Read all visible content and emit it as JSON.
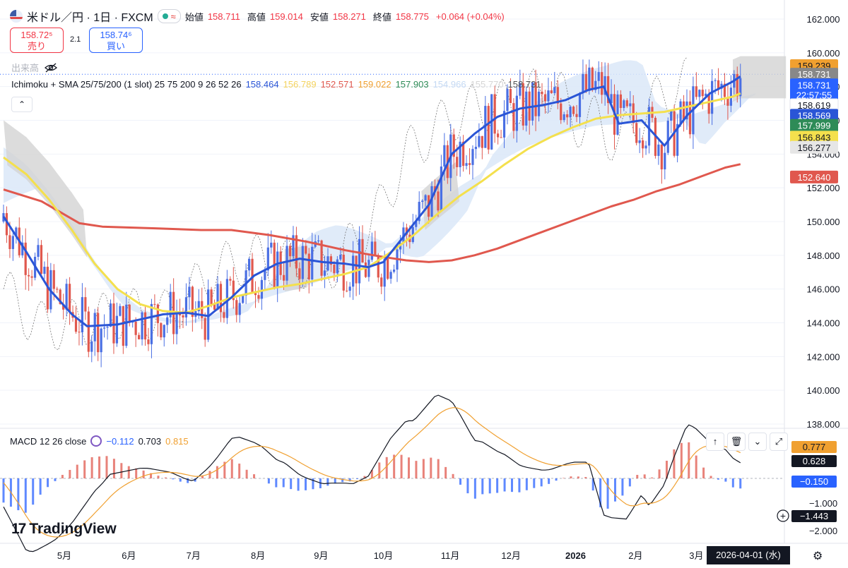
{
  "header": {
    "symbol": "米ドル／円 · 1日 · FXCM",
    "approx_icon": "≈",
    "open_label": "始値",
    "open": "158.711",
    "high_label": "高値",
    "high": "159.014",
    "low_label": "安値",
    "low": "158.271",
    "close_label": "終値",
    "close": "158.775",
    "change": "+0.064 (+0.04%)"
  },
  "trade": {
    "sell_price": "158.72⁵",
    "sell_label": "売り",
    "spread": "2.1",
    "buy_price": "158.74⁶",
    "buy_label": "買い"
  },
  "volume_label": "出来高",
  "indicator": {
    "name": "Ichimoku + SMA 25/75/200 (1 slot) 25 75 200 9 26 52 26",
    "values": [
      {
        "text": "158.464",
        "color": "#2a55d6"
      },
      {
        "text": "156.789",
        "color": "#f4d35e"
      },
      {
        "text": "152.571",
        "color": "#e0584e"
      },
      {
        "text": "159.022",
        "color": "#f0a030"
      },
      {
        "text": "157.903",
        "color": "#2e8b57"
      },
      {
        "text": "154.966",
        "color": "#c4d9f3"
      },
      {
        "text": "155.770",
        "color": "#d6d6d6"
      },
      {
        "text": "158.731",
        "color": "#555555"
      }
    ]
  },
  "collapse_icon": "⌃",
  "macd": {
    "label": "MACD 12 26 close",
    "v1": "−0.112",
    "v2": "0.703",
    "v3": "0.815",
    "v1_color": "#2962ff",
    "v2_color": "#131722",
    "v3_color": "#f0a030"
  },
  "pane_tools": [
    "↑",
    "🗑",
    "⌄",
    "⤢"
  ],
  "logo_mark": "17",
  "logo_text": "TradingView",
  "cursor_date": "2026-04-01 (水)",
  "gear_icon": "⚙",
  "chart_data": {
    "type": "candlestick",
    "title": "米ドル／円 · 1日 · FXCM",
    "y_ticks": [
      "162.000",
      "160.000",
      "158.000",
      "156.000",
      "154.000",
      "152.000",
      "150.000",
      "148.000",
      "146.000",
      "144.000",
      "142.000",
      "140.000",
      "138.000"
    ],
    "ylim": [
      138,
      162
    ],
    "x_ticks": [
      "5月",
      "6月",
      "7月",
      "8月",
      "9月",
      "10月",
      "11月",
      "12月",
      "2026",
      "2月",
      "3月"
    ],
    "price_tags": [
      {
        "text": "159.239",
        "bg": "#f0a030",
        "fg": "#131722",
        "y": 159.239
      },
      {
        "text": "158.731",
        "bg": "#888888",
        "fg": "#ffffff",
        "y": 158.731
      },
      {
        "text": "158.731",
        "bg": "#2962ff",
        "fg": "#ffffff",
        "y": 158.1
      },
      {
        "text": "22:57:55",
        "bg": "#2962ff",
        "fg": "#ffffff",
        "y": 157.5
      },
      {
        "text": "158.619",
        "bg": "#ffffff",
        "fg": "#131722",
        "y": 156.9
      },
      {
        "text": "158.569",
        "bg": "#2a55d6",
        "fg": "#ffffff",
        "y": 156.3
      },
      {
        "text": "157.999",
        "bg": "#2e8b57",
        "fg": "#ffffff",
        "y": 155.7
      },
      {
        "text": "156.843",
        "bg": "#f4e04d",
        "fg": "#131722",
        "y": 155.0
      },
      {
        "text": "156.277",
        "bg": "#e6e6e6",
        "fg": "#131722",
        "y": 154.4
      },
      {
        "text": "152.640",
        "bg": "#e0584e",
        "fg": "#ffffff",
        "y": 152.64
      }
    ],
    "sma25": [
      [
        0,
        150.3
      ],
      [
        0.03,
        148.2
      ],
      [
        0.06,
        146.0
      ],
      [
        0.09,
        144.5
      ],
      [
        0.11,
        143.8
      ],
      [
        0.15,
        143.9
      ],
      [
        0.18,
        144.2
      ],
      [
        0.21,
        144.5
      ],
      [
        0.24,
        144.6
      ],
      [
        0.27,
        144.4
      ],
      [
        0.3,
        145.5
      ],
      [
        0.33,
        146.8
      ],
      [
        0.36,
        147.5
      ],
      [
        0.39,
        147.8
      ],
      [
        0.42,
        147.6
      ],
      [
        0.45,
        147.5
      ],
      [
        0.48,
        147.3
      ],
      [
        0.5,
        147.6
      ],
      [
        0.53,
        149.3
      ],
      [
        0.56,
        151.0
      ],
      [
        0.59,
        154.0
      ],
      [
        0.62,
        155.2
      ],
      [
        0.65,
        156.2
      ],
      [
        0.68,
        156.7
      ],
      [
        0.71,
        156.9
      ],
      [
        0.74,
        157.2
      ],
      [
        0.77,
        157.8
      ],
      [
        0.79,
        158.0
      ],
      [
        0.81,
        155.8
      ],
      [
        0.84,
        156.0
      ],
      [
        0.87,
        154.5
      ],
      [
        0.9,
        156.3
      ],
      [
        0.93,
        157.6
      ],
      [
        0.96,
        158.3
      ],
      [
        0.97,
        158.6
      ]
    ],
    "sma75": [
      [
        0,
        153.8
      ],
      [
        0.03,
        152.8
      ],
      [
        0.06,
        151.3
      ],
      [
        0.09,
        149.5
      ],
      [
        0.12,
        147.5
      ],
      [
        0.15,
        146.0
      ],
      [
        0.18,
        145.1
      ],
      [
        0.21,
        144.7
      ],
      [
        0.24,
        144.6
      ],
      [
        0.27,
        145.0
      ],
      [
        0.3,
        145.5
      ],
      [
        0.33,
        145.8
      ],
      [
        0.36,
        146.1
      ],
      [
        0.39,
        146.3
      ],
      [
        0.42,
        146.6
      ],
      [
        0.45,
        146.9
      ],
      [
        0.48,
        147.3
      ],
      [
        0.51,
        148.2
      ],
      [
        0.54,
        149.2
      ],
      [
        0.57,
        150.4
      ],
      [
        0.6,
        151.5
      ],
      [
        0.63,
        152.4
      ],
      [
        0.66,
        153.4
      ],
      [
        0.69,
        154.3
      ],
      [
        0.72,
        155.0
      ],
      [
        0.75,
        155.6
      ],
      [
        0.78,
        156.1
      ],
      [
        0.81,
        156.3
      ],
      [
        0.84,
        156.4
      ],
      [
        0.87,
        156.5
      ],
      [
        0.9,
        156.8
      ],
      [
        0.93,
        157.1
      ],
      [
        0.96,
        157.4
      ],
      [
        0.97,
        157.6
      ]
    ],
    "sma200": [
      [
        0,
        151.9
      ],
      [
        0.05,
        151.2
      ],
      [
        0.1,
        149.9
      ],
      [
        0.13,
        149.7
      ],
      [
        0.2,
        149.6
      ],
      [
        0.26,
        149.5
      ],
      [
        0.3,
        149.5
      ],
      [
        0.35,
        149.2
      ],
      [
        0.4,
        148.8
      ],
      [
        0.45,
        148.3
      ],
      [
        0.5,
        147.9
      ],
      [
        0.53,
        147.7
      ],
      [
        0.56,
        147.6
      ],
      [
        0.59,
        147.7
      ],
      [
        0.62,
        148.0
      ],
      [
        0.65,
        148.4
      ],
      [
        0.68,
        148.9
      ],
      [
        0.71,
        149.4
      ],
      [
        0.74,
        149.9
      ],
      [
        0.77,
        150.4
      ],
      [
        0.8,
        150.9
      ],
      [
        0.83,
        151.3
      ],
      [
        0.86,
        151.8
      ],
      [
        0.89,
        152.2
      ],
      [
        0.92,
        152.7
      ],
      [
        0.95,
        153.2
      ],
      [
        0.97,
        153.4
      ]
    ]
  }
}
